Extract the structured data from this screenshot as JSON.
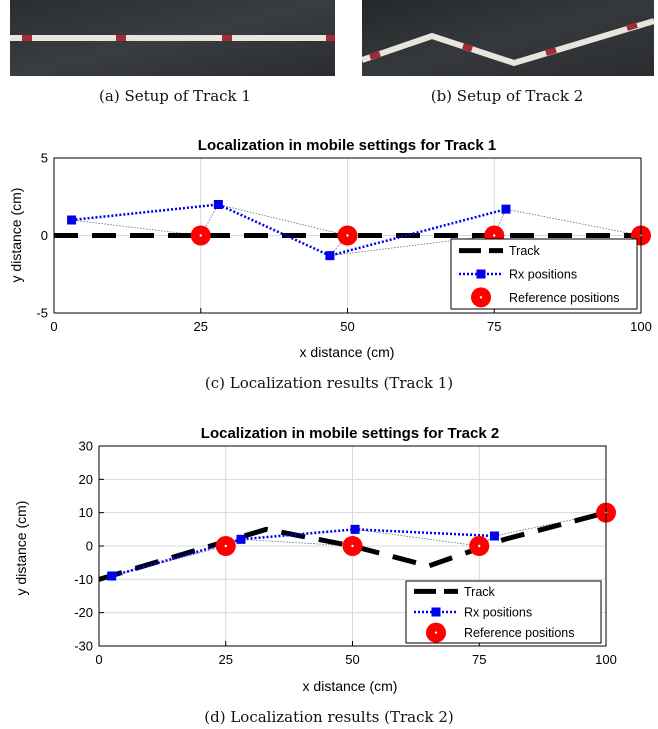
{
  "photos": [
    {
      "caption": "(a)  Setup of Track 1"
    },
    {
      "caption": "(b)  Setup of Track 2"
    }
  ],
  "colors": {
    "track": "#000000",
    "rx": "#0000ee",
    "reference": "#ff0000",
    "grid": "#d9d9d9"
  },
  "chart_data": [
    {
      "type": "line",
      "title": "Localization in mobile settings for Track 1",
      "xlabel": "x distance (cm)",
      "ylabel": "y distance (cm)",
      "xlim": [
        0,
        100
      ],
      "ylim": [
        -5,
        5
      ],
      "xticks": [
        0,
        25,
        50,
        75,
        100
      ],
      "yticks": [
        -5,
        0,
        5
      ],
      "caption": "(c)  Localization results (Track 1)",
      "legend_position": "bottom-right",
      "grid": true,
      "series": [
        {
          "name": "Track",
          "style": "dashed",
          "x": [
            0,
            100
          ],
          "y": [
            0,
            0
          ]
        },
        {
          "name": "Rx positions",
          "style": "dotted-marker",
          "x": [
            3,
            28,
            47,
            77
          ],
          "y": [
            1,
            2,
            -1.3,
            1.7
          ]
        },
        {
          "name": "Reference positions",
          "style": "marker",
          "x": [
            25,
            50,
            75,
            100
          ],
          "y": [
            0,
            0,
            0,
            0
          ]
        }
      ]
    },
    {
      "type": "line",
      "title": "Localization in mobile settings for Track 2",
      "xlabel": "x distance (cm)",
      "ylabel": "y distance (cm)",
      "xlim": [
        0,
        100
      ],
      "ylim": [
        -30,
        30
      ],
      "xticks": [
        0,
        25,
        50,
        75,
        100
      ],
      "yticks": [
        -30,
        -20,
        -10,
        0,
        10,
        20,
        30
      ],
      "caption": "(d)  Localization results (Track 2)",
      "legend_position": "bottom-right",
      "grid": true,
      "series": [
        {
          "name": "Track",
          "style": "dashed",
          "x": [
            0,
            33,
            50,
            65,
            80,
            100
          ],
          "y": [
            -10,
            5,
            0,
            -6,
            2,
            10
          ]
        },
        {
          "name": "Rx positions",
          "style": "dotted-marker",
          "x": [
            2.5,
            28,
            50.5,
            78
          ],
          "y": [
            -9,
            2,
            5,
            3
          ]
        },
        {
          "name": "Reference positions",
          "style": "marker",
          "x": [
            25,
            50,
            75,
            100
          ],
          "y": [
            0,
            0,
            0,
            10
          ]
        }
      ]
    }
  ]
}
